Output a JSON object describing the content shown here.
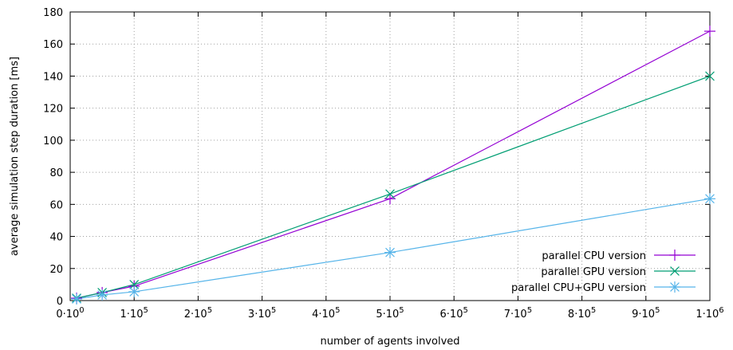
{
  "chart_data": {
    "type": "line",
    "title": "",
    "xlabel": "number of agents involved",
    "ylabel": "average simulation step duration [ms]",
    "xlim": [
      0,
      1000000
    ],
    "ylim": [
      0,
      180
    ],
    "grid": true,
    "legend_position": "bottom-right",
    "x_ticks": [
      {
        "value": 0,
        "mant": "0·10",
        "exp": "0"
      },
      {
        "value": 100000,
        "mant": "1·10",
        "exp": "5"
      },
      {
        "value": 200000,
        "mant": "2·10",
        "exp": "5"
      },
      {
        "value": 300000,
        "mant": "3·10",
        "exp": "5"
      },
      {
        "value": 400000,
        "mant": "4·10",
        "exp": "5"
      },
      {
        "value": 500000,
        "mant": "5·10",
        "exp": "5"
      },
      {
        "value": 600000,
        "mant": "6·10",
        "exp": "5"
      },
      {
        "value": 700000,
        "mant": "7·10",
        "exp": "5"
      },
      {
        "value": 800000,
        "mant": "8·10",
        "exp": "5"
      },
      {
        "value": 900000,
        "mant": "9·10",
        "exp": "5"
      },
      {
        "value": 1000000,
        "mant": "1·10",
        "exp": "6"
      }
    ],
    "y_ticks": [
      0,
      20,
      40,
      60,
      80,
      100,
      120,
      140,
      160,
      180
    ],
    "series": [
      {
        "name": "parallel CPU version",
        "color": "#9400d3",
        "marker": "plus",
        "x": [
          10000,
          50000,
          100000,
          500000,
          1000000
        ],
        "y": [
          1.5,
          5,
          9,
          63.5,
          168
        ]
      },
      {
        "name": "parallel GPU version",
        "color": "#009e73",
        "marker": "cross",
        "x": [
          10000,
          50000,
          100000,
          500000,
          1000000
        ],
        "y": [
          1.5,
          5,
          10,
          66.5,
          140
        ]
      },
      {
        "name": "parallel CPU+GPU version",
        "color": "#56b4e9",
        "marker": "star",
        "x": [
          10000,
          50000,
          100000,
          500000,
          1000000
        ],
        "y": [
          1,
          3.5,
          5.5,
          30,
          63.5
        ]
      }
    ]
  }
}
